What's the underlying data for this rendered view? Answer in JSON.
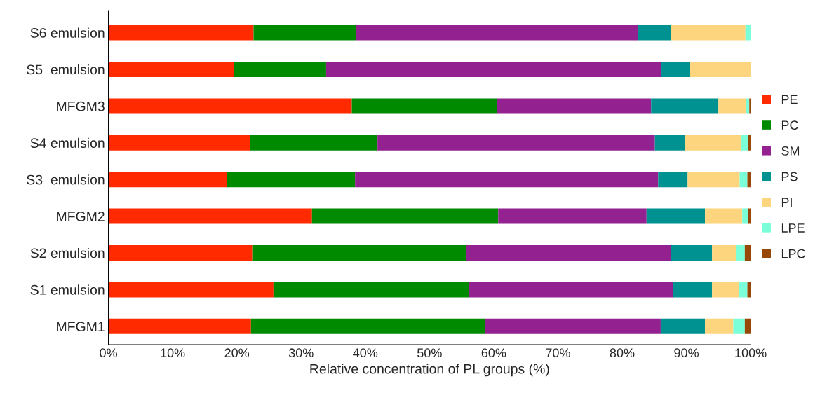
{
  "chart_data": {
    "type": "bar",
    "orientation": "horizontal",
    "stacked": true,
    "xlabel": "Relative concentration of PL groups (%)",
    "categories": [
      "S6 emulsion",
      "S5  emulsion",
      "MFGM3",
      "S4 emulsion",
      "S3  emulsion",
      "MFGM2",
      "S2 emulsion",
      "S1 emulsion",
      "MFGM1"
    ],
    "series": [
      {
        "name": "PE",
        "color": "#ff2a00",
        "values": [
          22.6,
          19.5,
          37.9,
          22.1,
          18.4,
          31.7,
          22.4,
          25.7,
          22.2
        ]
      },
      {
        "name": "PC",
        "color": "#008a00",
        "values": [
          16.0,
          14.4,
          22.6,
          19.8,
          20.0,
          29.0,
          33.3,
          30.4,
          36.5
        ]
      },
      {
        "name": "SM",
        "color": "#93218f",
        "values": [
          43.9,
          52.2,
          24.0,
          43.2,
          47.2,
          23.1,
          31.9,
          31.8,
          27.3
        ]
      },
      {
        "name": "PS",
        "color": "#009191",
        "values": [
          5.1,
          4.4,
          10.5,
          4.7,
          4.6,
          9.1,
          6.4,
          6.1,
          6.9
        ]
      },
      {
        "name": "PI",
        "color": "#fdd57e",
        "values": [
          11.6,
          9.5,
          4.3,
          8.7,
          8.1,
          5.8,
          3.7,
          4.2,
          4.4
        ]
      },
      {
        "name": "LPE",
        "color": "#7affd8",
        "values": [
          0.8,
          0,
          0.5,
          1.1,
          1.2,
          0.9,
          1.4,
          1.3,
          1.8
        ]
      },
      {
        "name": "LPC",
        "color": "#974706",
        "values": [
          0,
          0,
          0.2,
          0.4,
          0.5,
          0.4,
          0.9,
          0.5,
          0.9
        ]
      }
    ],
    "xlim": [
      0,
      100
    ],
    "xticks": [
      {
        "value": 0,
        "label": "0%"
      },
      {
        "value": 10,
        "label": "10%"
      },
      {
        "value": 20,
        "label": "20%"
      },
      {
        "value": 30,
        "label": "30%"
      },
      {
        "value": 40,
        "label": "40%"
      },
      {
        "value": 50,
        "label": "50%"
      },
      {
        "value": 60,
        "label": "60%"
      },
      {
        "value": 70,
        "label": "70%"
      },
      {
        "value": 80,
        "label": "80%"
      },
      {
        "value": 90,
        "label": "90%"
      },
      {
        "value": 100,
        "label": "100%"
      }
    ],
    "grid": false,
    "legend": "right"
  }
}
